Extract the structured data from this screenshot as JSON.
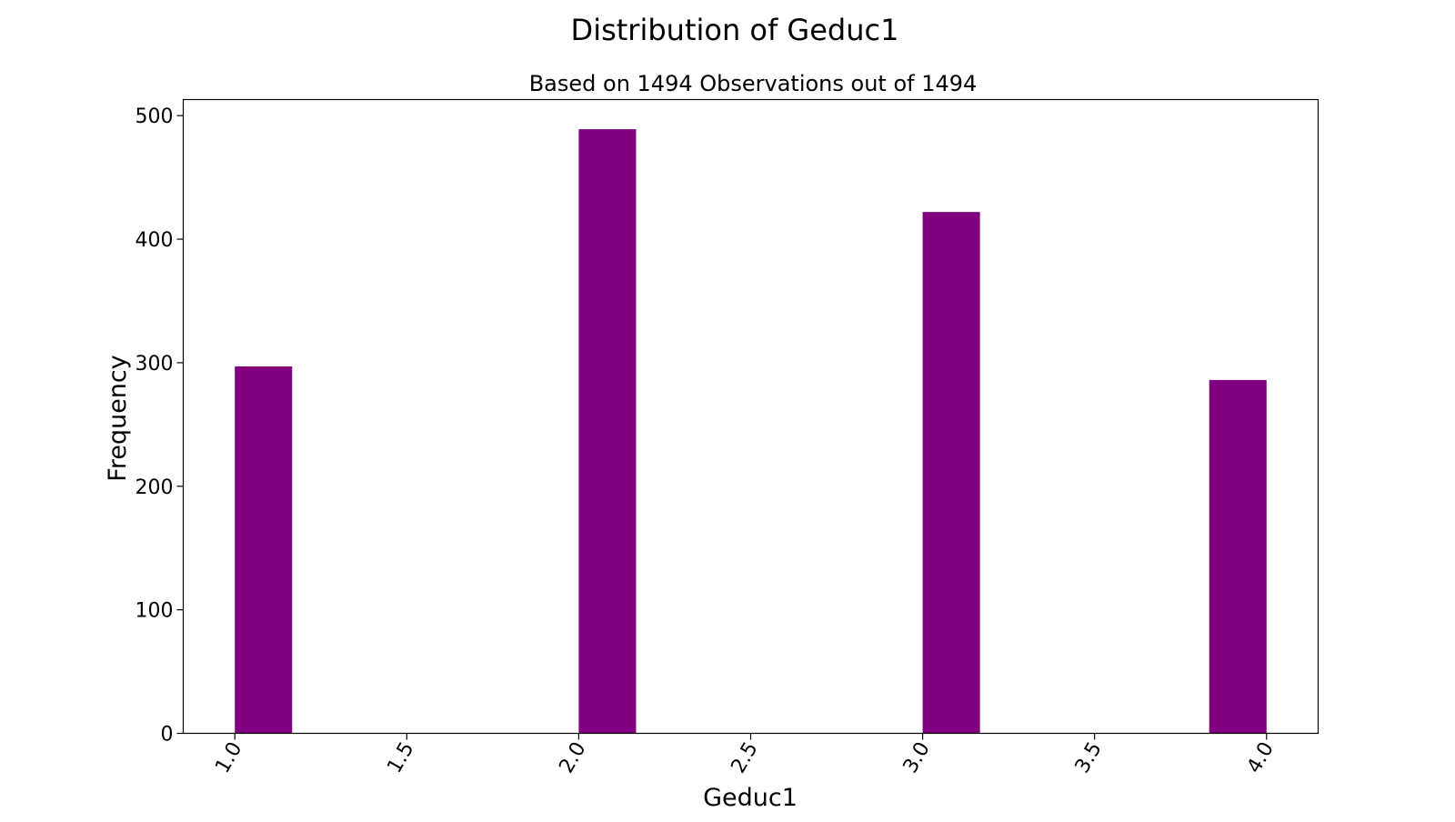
{
  "chart_data": {
    "type": "bar",
    "title": "Distribution of Geduc1",
    "subtitle": "Based on 1494 Observations out of 1494",
    "xlabel": "Geduc1",
    "ylabel": "Frequency",
    "bars": [
      {
        "x_start": 1.0,
        "x_end": 1.1667,
        "value": 297
      },
      {
        "x_start": 2.0,
        "x_end": 2.1667,
        "value": 489
      },
      {
        "x_start": 3.0,
        "x_end": 3.1667,
        "value": 422
      },
      {
        "x_start": 3.8333,
        "x_end": 4.0,
        "value": 286
      }
    ],
    "xlim": [
      0.85,
      4.15
    ],
    "ylim": [
      0,
      513
    ],
    "xticks": [
      {
        "value": 1.0,
        "label": "1.0"
      },
      {
        "value": 1.5,
        "label": "1.5"
      },
      {
        "value": 2.0,
        "label": "2.0"
      },
      {
        "value": 2.5,
        "label": "2.5"
      },
      {
        "value": 3.0,
        "label": "3.0"
      },
      {
        "value": 3.5,
        "label": "3.5"
      },
      {
        "value": 4.0,
        "label": "4.0"
      }
    ],
    "yticks": [
      {
        "value": 0,
        "label": "0"
      },
      {
        "value": 100,
        "label": "100"
      },
      {
        "value": 200,
        "label": "200"
      },
      {
        "value": 300,
        "label": "300"
      },
      {
        "value": 400,
        "label": "400"
      },
      {
        "value": 500,
        "label": "500"
      }
    ],
    "bar_color": "#800080",
    "grid": false,
    "legend": "none"
  }
}
